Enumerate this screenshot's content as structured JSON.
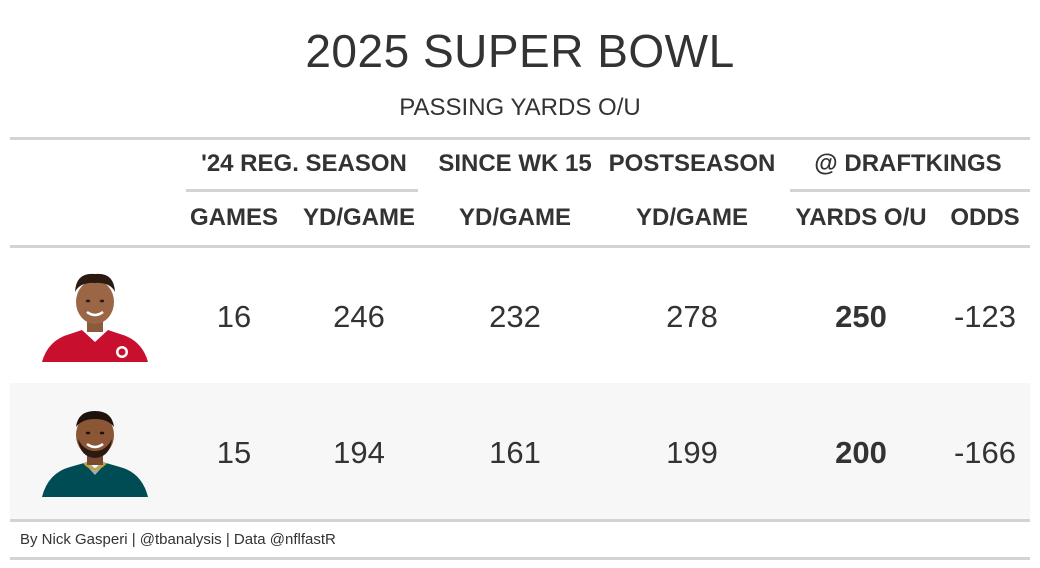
{
  "header": {
    "title": "2025 SUPER BOWL",
    "subtitle": "PASSING YARDS O/U"
  },
  "spanners": {
    "reg_season": "'24 REG. SEASON",
    "since_wk15": "SINCE WK 15",
    "postseason": "POSTSEASON",
    "draftkings": "@ DRAFTKINGS"
  },
  "columns": {
    "games": "GAMES",
    "reg_ydgame": "YD/GAME",
    "wk15_ydgame": "YD/GAME",
    "post_ydgame": "YD/GAME",
    "yards_ou": "YARDS O/U",
    "odds": "ODDS"
  },
  "rows": [
    {
      "player_icon": "chiefs-player-headshot",
      "jersey_color": "#c8102e",
      "games": "16",
      "reg_ydgame": "246",
      "wk15_ydgame": "232",
      "post_ydgame": "278",
      "yards_ou": "250",
      "odds": "-123"
    },
    {
      "player_icon": "eagles-player-headshot",
      "jersey_color": "#004c54",
      "games": "15",
      "reg_ydgame": "194",
      "wk15_ydgame": "161",
      "post_ydgame": "199",
      "yards_ou": "200",
      "odds": "-166"
    }
  ],
  "footer": {
    "credit": "By Nick Gasperi | @tbanalysis | Data @nflfastR"
  },
  "colors": {
    "text": "#333333",
    "rule": "#d3d3d3",
    "stripe": "#f7f7f7"
  }
}
